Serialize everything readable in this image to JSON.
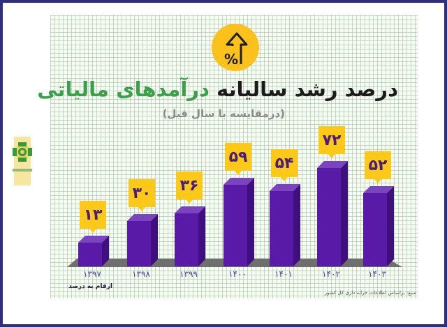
{
  "header": {
    "title_part_dark": "درصد رشد سالیانه ",
    "title_part_green": "درآمدهای مالیاتی",
    "subtitle": "(درمقایسه با سال قبل)",
    "badge_icon": "percent-up-arrow-icon"
  },
  "footer": {
    "note": "ارقام به درصد",
    "source": "منبع: براساس اطلاعات خزانه داری کل کشور"
  },
  "colors": {
    "bar_front": "#5a1aa8",
    "bar_side": "#3f0f80",
    "bar_top": "#7a44c0",
    "label_bg": "#fcc919",
    "label_text": "#4a1d7c",
    "title_green": "#3aa049",
    "title_dark": "#1c1b1b",
    "frame": "#2f2f7c",
    "floor": "#6f6f6f"
  },
  "chart_data": {
    "type": "bar",
    "title": "درصد رشد سالیانه درآمدهای مالیاتی",
    "subtitle": "(درمقایسه با سال قبل)",
    "categories": [
      "۱۳۹۷",
      "۱۳۹۸",
      "۱۳۹۹",
      "۱۴۰۰",
      "۱۴۰۱",
      "۱۴۰۲",
      "۱۴۰۳"
    ],
    "values": [
      13,
      30,
      36,
      59,
      54,
      72,
      52
    ],
    "value_labels": [
      "۱۳",
      "۳۰",
      "۳۶",
      "۵۹",
      "۵۴",
      "۷۲",
      "۵۲"
    ],
    "xlabel": "",
    "ylabel": "ارقام به درصد",
    "grid": true,
    "legend": null,
    "source": "منبع: براساس اطلاعات خزانه داری کل کشور"
  }
}
